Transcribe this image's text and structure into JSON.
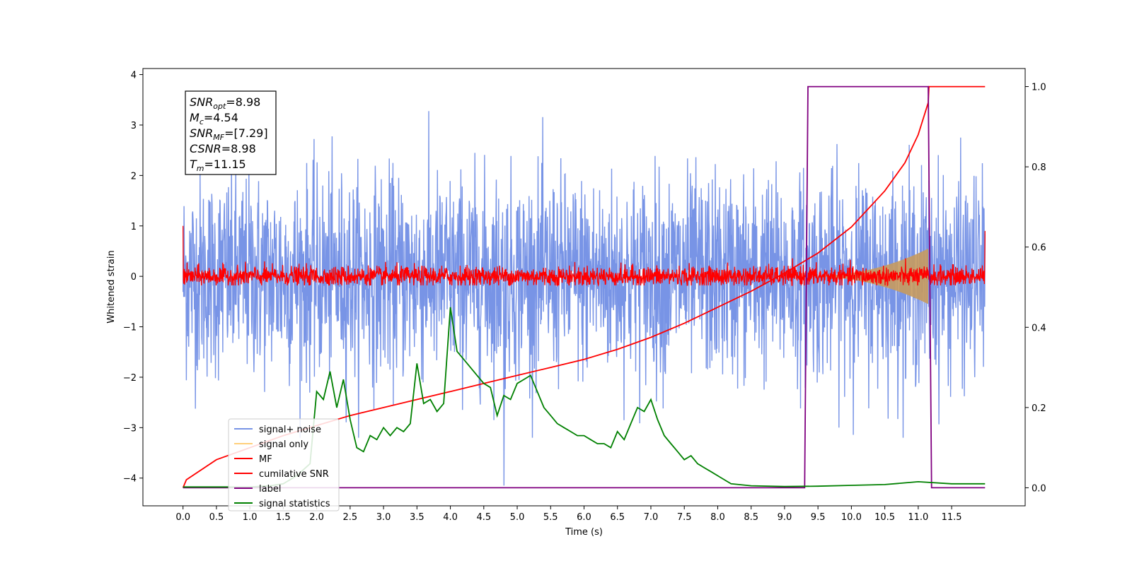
{
  "chart_data": {
    "type": "line",
    "title": "",
    "xlabel": "Time (s)",
    "ylabel": "Whitened strain",
    "xlim": [
      -0.6,
      12.6
    ],
    "ylim": [
      -4.55,
      4.12
    ],
    "y2lim": [
      -0.045,
      1.045
    ],
    "xticks": [
      0.0,
      0.5,
      1.0,
      1.5,
      2.0,
      2.5,
      3.0,
      3.5,
      4.0,
      4.5,
      5.0,
      5.5,
      6.0,
      6.5,
      7.0,
      7.5,
      8.0,
      8.5,
      9.0,
      9.5,
      10.0,
      10.5,
      11.0,
      11.5
    ],
    "xtick_labels": [
      "0.0",
      "0.5",
      "1.0",
      "1.5",
      "2.0",
      "2.5",
      "3.0",
      "3.5",
      "4.0",
      "4.5",
      "5.0",
      "5.5",
      "6.0",
      "6.5",
      "7.0",
      "7.5",
      "8.0",
      "8.5",
      "9.0",
      "9.5",
      "10.0",
      "10.5",
      "11.0",
      "11.5"
    ],
    "yticks": [
      -4,
      -3,
      -2,
      -1,
      0,
      1,
      2,
      3,
      4
    ],
    "ytick_labels": [
      "−4",
      "−3",
      "−2",
      "−1",
      "0",
      "1",
      "2",
      "3",
      "4"
    ],
    "y2ticks": [
      0.0,
      0.2,
      0.4,
      0.6,
      0.8,
      1.0
    ],
    "y2tick_labels": [
      "0.0",
      "0.2",
      "0.4",
      "0.6",
      "0.8",
      "1.0"
    ],
    "grid": false,
    "legend_position": "lower-left",
    "annotation": {
      "lines": [
        {
          "base": "SNR",
          "sub": "opt",
          "value": "=8.98"
        },
        {
          "base": "M",
          "sub": "c",
          "value": "=4.54"
        },
        {
          "base": "SNR",
          "sub": "MF",
          "value": "=[7.29]"
        },
        {
          "base": "CSNR",
          "sub": "",
          "value": "=8.98"
        },
        {
          "base": "T",
          "sub": "m",
          "value": "=11.15"
        }
      ]
    },
    "series": [
      {
        "name": "signal+ noise",
        "color": "#7894e6",
        "axis": "left",
        "kind": "noise",
        "center": 0.0,
        "spread": 1.0
      },
      {
        "name": "signal only",
        "color": "#ffd07a",
        "axis": "left",
        "kind": "chirp",
        "t_start": 9.3,
        "t_merge": 11.15,
        "amplitude": 0.55
      },
      {
        "name": "MF",
        "color": "#ff0000",
        "axis": "left",
        "kind": "noise",
        "center": 0.0,
        "spread": 0.1
      },
      {
        "name": "cumilative SNR",
        "color": "#ff0000",
        "axis": "right",
        "kind": "line",
        "x": [
          0.0,
          0.05,
          0.5,
          1.0,
          1.5,
          2.0,
          2.5,
          3.0,
          3.5,
          4.0,
          4.5,
          5.0,
          5.5,
          6.0,
          6.5,
          7.0,
          7.5,
          8.0,
          8.5,
          9.0,
          9.5,
          10.0,
          10.5,
          10.8,
          11.0,
          11.15,
          11.16,
          12.0
        ],
        "y": [
          0.0,
          0.02,
          0.07,
          0.1,
          0.13,
          0.155,
          0.18,
          0.2,
          0.22,
          0.24,
          0.26,
          0.28,
          0.3,
          0.32,
          0.345,
          0.375,
          0.41,
          0.45,
          0.49,
          0.535,
          0.585,
          0.65,
          0.74,
          0.81,
          0.88,
          0.96,
          1.0,
          1.0
        ]
      },
      {
        "name": "label",
        "color": "#800080",
        "axis": "right",
        "kind": "line",
        "x": [
          0.0,
          9.3,
          9.35,
          11.15,
          11.2,
          12.0
        ],
        "y": [
          0.0,
          0.0,
          1.0,
          1.0,
          0.0,
          0.0
        ]
      },
      {
        "name": "signal statistics",
        "color": "#008000",
        "axis": "right",
        "kind": "line",
        "x": [
          0.0,
          0.5,
          1.0,
          1.3,
          1.5,
          1.7,
          1.9,
          2.0,
          2.1,
          2.2,
          2.3,
          2.4,
          2.5,
          2.6,
          2.7,
          2.8,
          2.9,
          3.0,
          3.1,
          3.2,
          3.3,
          3.4,
          3.5,
          3.6,
          3.7,
          3.8,
          3.9,
          4.0,
          4.1,
          4.2,
          4.3,
          4.4,
          4.5,
          4.6,
          4.7,
          4.8,
          4.9,
          5.0,
          5.1,
          5.2,
          5.3,
          5.4,
          5.5,
          5.6,
          5.7,
          5.8,
          5.9,
          6.0,
          6.1,
          6.2,
          6.3,
          6.4,
          6.5,
          6.6,
          6.7,
          6.8,
          6.9,
          7.0,
          7.1,
          7.2,
          7.3,
          7.4,
          7.5,
          7.6,
          7.7,
          7.8,
          7.9,
          8.0,
          8.2,
          8.5,
          9.0,
          9.5,
          10.0,
          10.5,
          11.0,
          11.5,
          12.0
        ],
        "y": [
          0.002,
          0.002,
          0.002,
          0.005,
          0.01,
          0.03,
          0.06,
          0.24,
          0.22,
          0.29,
          0.2,
          0.27,
          0.17,
          0.1,
          0.09,
          0.13,
          0.12,
          0.15,
          0.13,
          0.15,
          0.14,
          0.16,
          0.31,
          0.21,
          0.22,
          0.19,
          0.21,
          0.45,
          0.34,
          0.32,
          0.3,
          0.28,
          0.26,
          0.25,
          0.18,
          0.23,
          0.22,
          0.26,
          0.27,
          0.28,
          0.24,
          0.2,
          0.18,
          0.16,
          0.15,
          0.14,
          0.13,
          0.13,
          0.12,
          0.11,
          0.11,
          0.1,
          0.14,
          0.12,
          0.16,
          0.2,
          0.19,
          0.22,
          0.17,
          0.13,
          0.11,
          0.09,
          0.07,
          0.08,
          0.06,
          0.05,
          0.04,
          0.03,
          0.01,
          0.005,
          0.003,
          0.004,
          0.006,
          0.008,
          0.015,
          0.01,
          0.01
        ]
      }
    ]
  }
}
